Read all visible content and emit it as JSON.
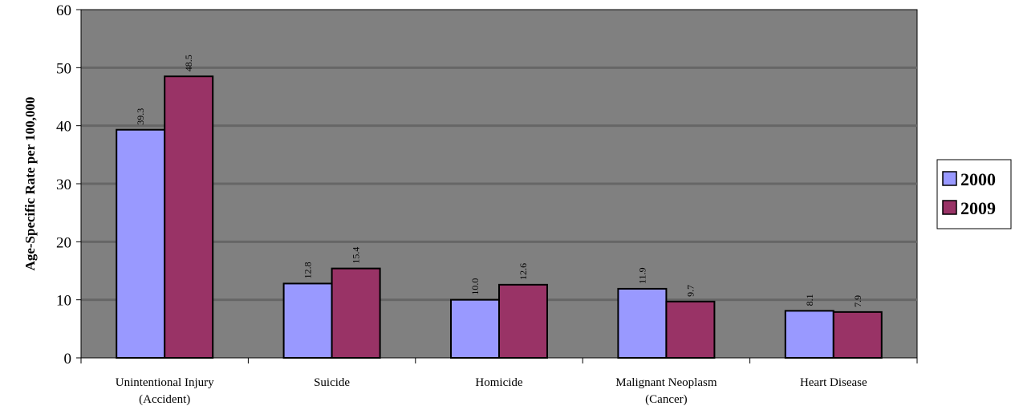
{
  "chart_data": {
    "type": "bar",
    "categories": [
      [
        "Unintentional Injury",
        "(Accident)"
      ],
      [
        "Suicide"
      ],
      [
        "Homicide"
      ],
      [
        "Malignant Neoplasm",
        "(Cancer)"
      ],
      [
        "Heart Disease"
      ]
    ],
    "series": [
      {
        "name": "2000",
        "color": "#9999ff",
        "values": [
          39.3,
          12.8,
          10.0,
          11.9,
          8.1
        ],
        "labels": [
          "39.3",
          "12.8",
          "10.0",
          "11.9",
          "8.1"
        ]
      },
      {
        "name": "2009",
        "color": "#993366",
        "values": [
          48.5,
          15.4,
          12.6,
          9.7,
          7.9
        ],
        "labels": [
          "48.5",
          "15.4",
          "12.6",
          "9.7",
          "7.9"
        ]
      }
    ],
    "title": "",
    "xlabel": "",
    "ylabel": "Age-Specific Rate per 100,000",
    "ylim": [
      0,
      60
    ],
    "yticks": [
      "0",
      "10",
      "20",
      "30",
      "40",
      "50",
      "60"
    ],
    "grid": true,
    "plot_background": "#808080",
    "gridline_color": "#666666",
    "legend_position": "right"
  }
}
